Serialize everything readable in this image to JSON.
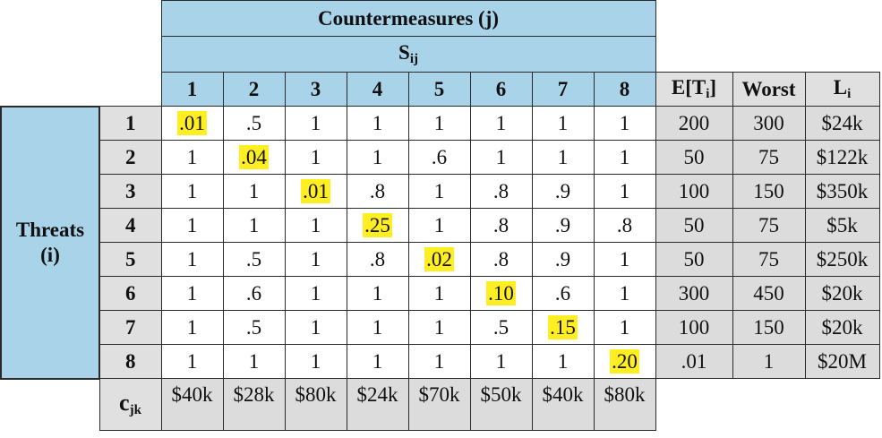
{
  "header": {
    "countermeasures": "Countermeasures (j)",
    "s_base": "S",
    "s_sub": "ij",
    "col_numbers": [
      "1",
      "2",
      "3",
      "4",
      "5",
      "6",
      "7",
      "8"
    ],
    "et_base": "E[T",
    "et_sub": "i",
    "et_close": "]",
    "worst": "Worst",
    "l_base": "L",
    "l_sub": "i"
  },
  "threats_label_line1": "Threats",
  "threats_label_line2": "(i)",
  "rows": [
    {
      "label": "1",
      "cells": [
        ".01",
        ".5",
        "1",
        "1",
        "1",
        "1",
        "1",
        "1"
      ],
      "highlight": 0,
      "et": "200",
      "worst": "300",
      "l": "$24k"
    },
    {
      "label": "2",
      "cells": [
        "1",
        ".04",
        "1",
        "1",
        ".6",
        "1",
        "1",
        "1"
      ],
      "highlight": 1,
      "et": "50",
      "worst": "75",
      "l": "$122k"
    },
    {
      "label": "3",
      "cells": [
        "1",
        "1",
        ".01",
        ".8",
        "1",
        ".8",
        ".9",
        "1"
      ],
      "highlight": 2,
      "et": "100",
      "worst": "150",
      "l": "$350k"
    },
    {
      "label": "4",
      "cells": [
        "1",
        "1",
        "1",
        ".25",
        "1",
        ".8",
        ".9",
        ".8"
      ],
      "highlight": 3,
      "et": "50",
      "worst": "75",
      "l": "$5k"
    },
    {
      "label": "5",
      "cells": [
        "1",
        ".5",
        "1",
        ".8",
        ".02",
        ".8",
        ".9",
        "1"
      ],
      "highlight": 4,
      "et": "50",
      "worst": "75",
      "l": "$250k"
    },
    {
      "label": "6",
      "cells": [
        "1",
        ".6",
        "1",
        "1",
        "1",
        ".10",
        ".6",
        "1"
      ],
      "highlight": 5,
      "et": "300",
      "worst": "450",
      "l": "$20k"
    },
    {
      "label": "7",
      "cells": [
        "1",
        ".5",
        "1",
        "1",
        "1",
        ".5",
        ".15",
        "1"
      ],
      "highlight": 6,
      "et": "100",
      "worst": "150",
      "l": "$20k"
    },
    {
      "label": "8",
      "cells": [
        "1",
        "1",
        "1",
        "1",
        "1",
        "1",
        "1",
        ".20"
      ],
      "highlight": 7,
      "et": ".01",
      "worst": "1",
      "l": "$20M"
    }
  ],
  "cost_row": {
    "label_base": "c",
    "label_sub": "jk",
    "values": [
      "$40k",
      "$28k",
      "$80k",
      "$24k",
      "$70k",
      "$50k",
      "$40k",
      "$80k"
    ]
  },
  "colors": {
    "header_blue": "#a9d3e8",
    "highlight_yellow": "#ffee22",
    "gray": "#dcdcdc"
  }
}
